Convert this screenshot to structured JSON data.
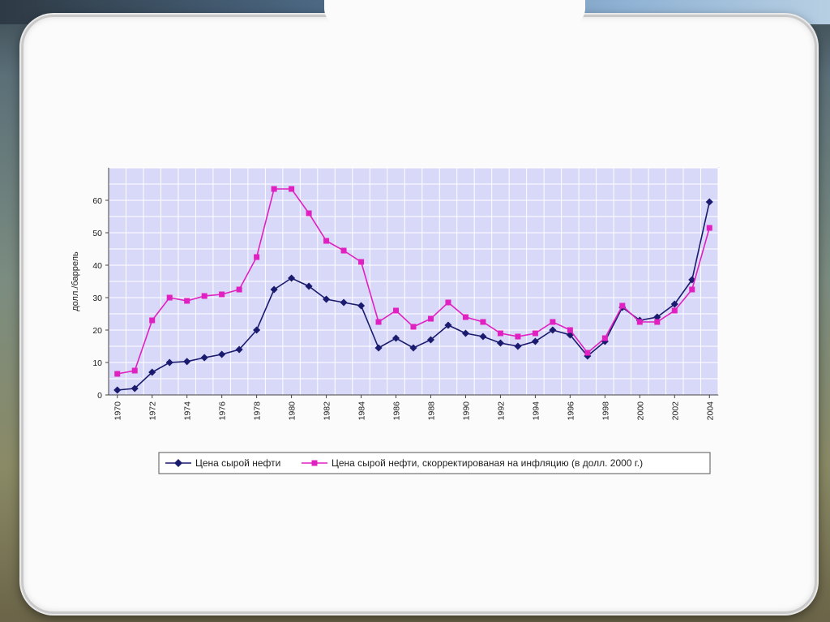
{
  "chart_data": {
    "type": "line",
    "title": "",
    "xlabel": "",
    "ylabel": "долл./баррель",
    "ylim": [
      0,
      70
    ],
    "yticks": [
      0,
      10,
      20,
      30,
      40,
      50,
      60
    ],
    "xlim": [
      1970,
      2004
    ],
    "xticks": [
      1970,
      1972,
      1974,
      1976,
      1978,
      1980,
      1982,
      1984,
      1986,
      1988,
      1990,
      1992,
      1994,
      1996,
      1998,
      2000,
      2002,
      2004
    ],
    "grid": true,
    "legend_position": "bottom",
    "x": [
      1970,
      1971,
      1972,
      1973,
      1974,
      1975,
      1976,
      1977,
      1978,
      1979,
      1980,
      1981,
      1982,
      1983,
      1984,
      1985,
      1986,
      1987,
      1988,
      1989,
      1990,
      1991,
      1992,
      1993,
      1994,
      1995,
      1996,
      1997,
      1998,
      1999,
      2000,
      2001,
      2002,
      2003,
      2004
    ],
    "series": [
      {
        "name": "Цена сырой нефти",
        "color": "#1a1a6e",
        "marker": "diamond",
        "values": [
          1.5,
          2,
          7,
          10,
          10.3,
          11.5,
          12.5,
          14,
          20,
          32.5,
          36,
          33.5,
          29.5,
          28.5,
          27.5,
          14.5,
          17.5,
          14.5,
          17,
          21.5,
          19,
          18,
          16,
          15,
          16.5,
          20,
          18.5,
          12,
          16.5,
          27,
          23,
          24,
          28,
          35.5,
          59.5
        ]
      },
      {
        "name": "Цена сырой нефти, скорректированая на инфляцию (в долл. 2000 г.)",
        "color": "#e020c0",
        "marker": "square",
        "values": [
          6.5,
          7.5,
          23,
          30,
          29,
          30.5,
          31,
          32.5,
          42.5,
          63.5,
          63.5,
          56,
          47.5,
          44.5,
          41,
          22.5,
          26,
          21,
          23.5,
          28.5,
          24,
          22.5,
          19,
          18,
          19,
          22.5,
          20,
          13,
          17.5,
          27.5,
          22.5,
          22.5,
          26,
          32.5,
          51.5
        ]
      }
    ]
  }
}
